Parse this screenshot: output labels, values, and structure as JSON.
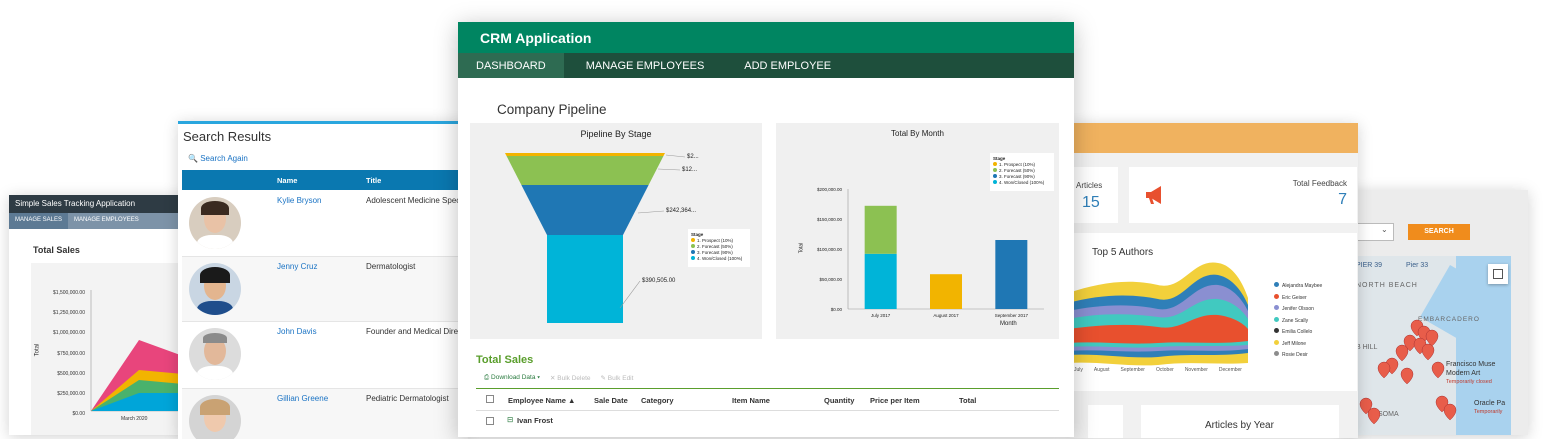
{
  "sales_app": {
    "title": "Simple Sales Tracking Application",
    "nav": [
      "MANAGE SALES",
      "MANAGE EMPLOYEES"
    ],
    "chart_title": "Total Sales",
    "y_ticks": [
      "$1,500,000.00",
      "$1,250,000.00",
      "$1,000,000.00",
      "$750,000.00",
      "$500,000.00",
      "$250,000.00",
      "$0.00"
    ],
    "y_label": "Total",
    "x_tick": "March 2020"
  },
  "search": {
    "title": "Search Results",
    "search_again": "Search Again",
    "columns": [
      "Name",
      "Title"
    ],
    "rows": [
      {
        "name": "Kylie Bryson",
        "title": "Adolescent Medicine Speci"
      },
      {
        "name": "Jenny Cruz",
        "title": "Dermatologist"
      },
      {
        "name": "John Davis",
        "title": "Founder and Medical Direct"
      },
      {
        "name": "Gillian Greene",
        "title": "Pediatric Dermatologist"
      }
    ]
  },
  "crm": {
    "app_title": "CRM Application",
    "nav": [
      "DASHBOARD",
      "MANAGE EMPLOYEES",
      "ADD EMPLOYEE"
    ],
    "section_title": "Company Pipeline",
    "funnel_title": "Pipeline By Stage",
    "funnel_labels": [
      "$2...",
      "$12...",
      "$242,364...",
      "$390,505.00"
    ],
    "stage_legend_title": "Stage",
    "stages": [
      "1. Prospect (10%)",
      "2. Forecast (50%)",
      "3. Forecast (90%)",
      "4. Won/Closed (100%)"
    ],
    "month_title": "Total By Month",
    "month_ylabel": "Total",
    "month_xlabel": "Month",
    "total_sales_title": "Total Sales",
    "toolbar": {
      "download": "Download Data ▾",
      "bulk_delete": "Bulk Delete",
      "bulk_edit": "Bulk Edit"
    },
    "grid_columns": [
      "Employee Name ▲",
      "Sale Date",
      "Category",
      "Item Name",
      "Quantity",
      "Price per Item",
      "Total"
    ],
    "group_row": "Ivan Frost"
  },
  "articles": {
    "articles_label": "Articles",
    "articles_count": "15",
    "feedback_label": "Total Feedback",
    "feedback_count": "7",
    "authors_title": "Top 5 Authors",
    "authors": [
      "Alejandra Maybee",
      "Eric Geiser",
      "Jenifer Olsson",
      "Zane Scally",
      "Emilia Collelo",
      "Jeff Milone",
      "Rosie Desir"
    ],
    "author_colors": [
      "#2f7fb8",
      "#e8502e",
      "#8a8fd1",
      "#41c9c0",
      "#333333",
      "#f2d03b",
      "#8c8c8c"
    ],
    "x_ticks": [
      "July",
      "August",
      "September",
      "October",
      "November",
      "December"
    ],
    "by_year_title": "Articles by Year"
  },
  "map": {
    "search_button": "SEARCH",
    "labels": [
      "PIER 39",
      "Pier 33",
      "NORTH BEACH",
      "EMBARCADERO",
      "B HILL",
      "Francisco Muse",
      "Modern Art",
      "Temporarily closed",
      "Oracle Pa",
      "Temporarily",
      "SOMA"
    ]
  },
  "chart_data": [
    {
      "type": "area",
      "title": "Pipeline By Stage",
      "categories": [
        "1. Prospect (10%)",
        "2. Forecast (50%)",
        "3. Forecast (90%)",
        "4. Won/Closed (100%)"
      ],
      "values": [
        2,
        12,
        242364,
        390505
      ],
      "labels": [
        "$2...",
        "$12...",
        "$242,364...",
        "$390,505.00"
      ],
      "colors": [
        "#f2b400",
        "#8cc152",
        "#1f77b4",
        "#00b4d8"
      ],
      "legend": "right"
    },
    {
      "type": "bar",
      "title": "Total By Month",
      "xlabel": "Month",
      "ylabel": "Total",
      "categories": [
        "July 2017",
        "August 2017",
        "September 2017"
      ],
      "y_ticks": [
        "$200,000.00",
        "$150,000.00",
        "$100,000.00",
        "$50,000.00",
        "$0.00"
      ],
      "ylim": [
        0,
        200000
      ],
      "series": [
        {
          "name": "1. Prospect (10%)",
          "values": [
            0,
            58000,
            0
          ],
          "color": "#f2b400"
        },
        {
          "name": "2. Forecast (50%)",
          "values": [
            80000,
            0,
            0
          ],
          "color": "#8cc152"
        },
        {
          "name": "3. Forecast (90%)",
          "values": [
            0,
            0,
            115000
          ],
          "color": "#1f77b4"
        },
        {
          "name": "4. Won/Closed (100%)",
          "values": [
            92000,
            0,
            0
          ],
          "color": "#00b4d8"
        }
      ],
      "legend": "top-right"
    }
  ]
}
